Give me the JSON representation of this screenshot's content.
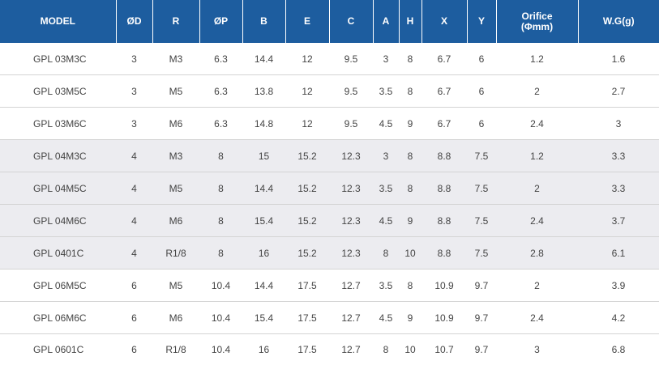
{
  "columns": [
    {
      "key": "model",
      "label": "MODEL"
    },
    {
      "key": "d",
      "label": "ØD"
    },
    {
      "key": "r",
      "label": "R"
    },
    {
      "key": "p",
      "label": "ØP"
    },
    {
      "key": "b",
      "label": "B"
    },
    {
      "key": "e",
      "label": "E"
    },
    {
      "key": "c",
      "label": "C"
    },
    {
      "key": "a",
      "label": "A"
    },
    {
      "key": "h",
      "label": "H"
    },
    {
      "key": "x",
      "label": "X"
    },
    {
      "key": "y",
      "label": "Y"
    },
    {
      "key": "orifice",
      "label": "Orifice",
      "label2": "(Φmm)"
    },
    {
      "key": "wg",
      "label": "W.G(g)"
    }
  ],
  "rows": [
    {
      "model": "GPL 03M3C",
      "d": "3",
      "r": "M3",
      "p": "6.3",
      "b": "14.4",
      "e": "12",
      "c": "9.5",
      "a": "3",
      "h": "8",
      "x": "6.7",
      "y": "6",
      "orifice": "1.2",
      "wg": "1.6"
    },
    {
      "model": "GPL 03M5C",
      "d": "3",
      "r": "M5",
      "p": "6.3",
      "b": "13.8",
      "e": "12",
      "c": "9.5",
      "a": "3.5",
      "h": "8",
      "x": "6.7",
      "y": "6",
      "orifice": "2",
      "wg": "2.7"
    },
    {
      "model": "GPL 03M6C",
      "d": "3",
      "r": "M6",
      "p": "6.3",
      "b": "14.8",
      "e": "12",
      "c": "9.5",
      "a": "4.5",
      "h": "9",
      "x": "6.7",
      "y": "6",
      "orifice": "2.4",
      "wg": "3"
    },
    {
      "model": "GPL 04M3C",
      "d": "4",
      "r": "M3",
      "p": "8",
      "b": "15",
      "e": "15.2",
      "c": "12.3",
      "a": "3",
      "h": "8",
      "x": "8.8",
      "y": "7.5",
      "orifice": "1.2",
      "wg": "3.3"
    },
    {
      "model": "GPL 04M5C",
      "d": "4",
      "r": "M5",
      "p": "8",
      "b": "14.4",
      "e": "15.2",
      "c": "12.3",
      "a": "3.5",
      "h": "8",
      "x": "8.8",
      "y": "7.5",
      "orifice": "2",
      "wg": "3.3"
    },
    {
      "model": "GPL 04M6C",
      "d": "4",
      "r": "M6",
      "p": "8",
      "b": "15.4",
      "e": "15.2",
      "c": "12.3",
      "a": "4.5",
      "h": "9",
      "x": "8.8",
      "y": "7.5",
      "orifice": "2.4",
      "wg": "3.7"
    },
    {
      "model": "GPL 0401C",
      "d": "4",
      "r": "R1/8",
      "p": "8",
      "b": "16",
      "e": "15.2",
      "c": "12.3",
      "a": "8",
      "h": "10",
      "x": "8.8",
      "y": "7.5",
      "orifice": "2.8",
      "wg": "6.1"
    },
    {
      "model": "GPL 06M5C",
      "d": "6",
      "r": "M5",
      "p": "10.4",
      "b": "14.4",
      "e": "17.5",
      "c": "12.7",
      "a": "3.5",
      "h": "8",
      "x": "10.9",
      "y": "9.7",
      "orifice": "2",
      "wg": "3.9"
    },
    {
      "model": "GPL 06M6C",
      "d": "6",
      "r": "M6",
      "p": "10.4",
      "b": "15.4",
      "e": "17.5",
      "c": "12.7",
      "a": "4.5",
      "h": "9",
      "x": "10.9",
      "y": "9.7",
      "orifice": "2.4",
      "wg": "4.2"
    },
    {
      "model": "GPL 0601C",
      "d": "6",
      "r": "R1/8",
      "p": "10.4",
      "b": "16",
      "e": "17.5",
      "c": "12.7",
      "a": "8",
      "h": "10",
      "x": "10.7",
      "y": "9.7",
      "orifice": "3",
      "wg": "6.8"
    }
  ],
  "shaded_rows": [
    3,
    4,
    5,
    6
  ],
  "colors": {
    "header_bg": "#1d5d9f",
    "header_text": "#ffffff",
    "shade_bg": "#ececf0",
    "cell_text": "#444444"
  }
}
